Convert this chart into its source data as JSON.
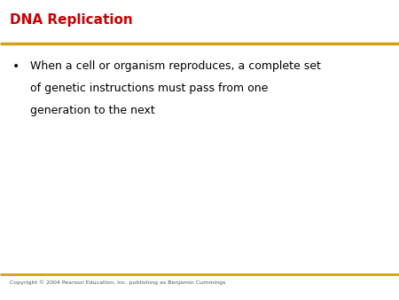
{
  "title": "DNA Replication",
  "title_color": "#CC0000",
  "title_fontsize": 11,
  "bullet_fontsize": 9,
  "bullet_color": "#000000",
  "background_color": "#FFFFFF",
  "line_color": "#D4A017",
  "bullet_lines": [
    "When a cell or organism reproduces, a complete set",
    "of genetic instructions must pass from one",
    "generation to the next"
  ],
  "copyright_text": "Copyright © 2004 Pearson Education, Inc. publishing as Benjamin Cummings",
  "copyright_fontsize": 4.5,
  "copyright_color": "#555555"
}
